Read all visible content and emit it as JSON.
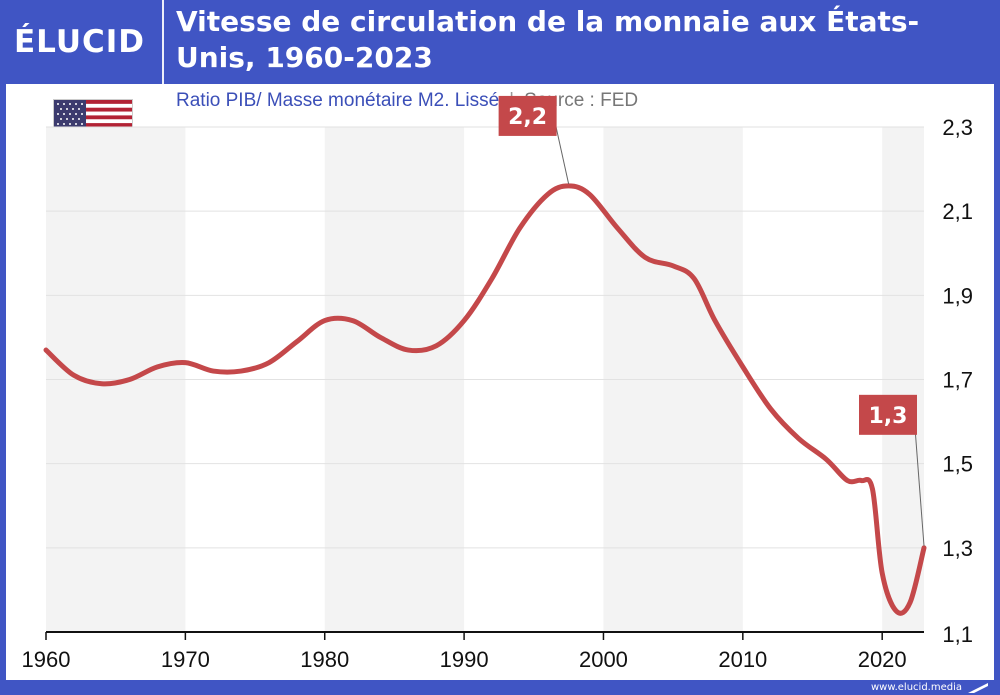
{
  "header": {
    "logo": "ÉLUCID",
    "title": "Vitesse de circulation de la monnaie aux États-Unis, 1960-2023"
  },
  "subtitle": {
    "main": "Ratio PIB/ Masse monétaire M2. Lissé",
    "separator": "|",
    "source": "Source : FED"
  },
  "footer": {
    "url": "www.elucid.media"
  },
  "colors": {
    "brand": "#4055c4",
    "line": "#c4484a",
    "band": "#f3f3f3",
    "grid": "#e2e2e2"
  },
  "chart_data": {
    "type": "line",
    "title": "Vitesse de circulation de la monnaie aux États-Unis, 1960-2023",
    "xlim": [
      1960,
      2023
    ],
    "ylim": [
      1.1,
      2.3
    ],
    "x_ticks": [
      1960,
      1970,
      1980,
      1990,
      2000,
      2010,
      2020
    ],
    "x_tick_labels": [
      "1960",
      "1970",
      "1980",
      "1990",
      "2000",
      "2010",
      "2020"
    ],
    "y_ticks": [
      1.1,
      1.3,
      1.5,
      1.7,
      1.9,
      2.1,
      2.3
    ],
    "y_tick_labels": [
      "1,1",
      "1,3",
      "1,5",
      "1,7",
      "1,9",
      "2,1",
      "2,3"
    ],
    "grid": true,
    "series": [
      {
        "x": [
          1960,
          1962,
          1964,
          1966,
          1968,
          1970,
          1972,
          1974,
          1976,
          1978,
          1980,
          1982,
          1984,
          1986,
          1988,
          1990,
          1992,
          1994,
          1996,
          1997.5,
          1999,
          2001,
          2003,
          2005,
          2006.5,
          2008,
          2010,
          2012,
          2014,
          2016,
          2017.5,
          2018.5,
          2019.3,
          2020,
          2021,
          2022,
          2023
        ],
        "y": [
          1.77,
          1.71,
          1.69,
          1.7,
          1.73,
          1.74,
          1.72,
          1.72,
          1.74,
          1.79,
          1.84,
          1.84,
          1.8,
          1.77,
          1.78,
          1.84,
          1.94,
          2.06,
          2.14,
          2.16,
          2.14,
          2.06,
          1.99,
          1.97,
          1.94,
          1.84,
          1.73,
          1.63,
          1.56,
          1.51,
          1.46,
          1.46,
          1.44,
          1.24,
          1.15,
          1.17,
          1.3
        ]
      }
    ],
    "annotations": [
      {
        "text": "2,2",
        "x": 1997.5,
        "y": 2.16
      },
      {
        "text": "1,3",
        "x": 2023,
        "y": 1.3
      }
    ]
  }
}
